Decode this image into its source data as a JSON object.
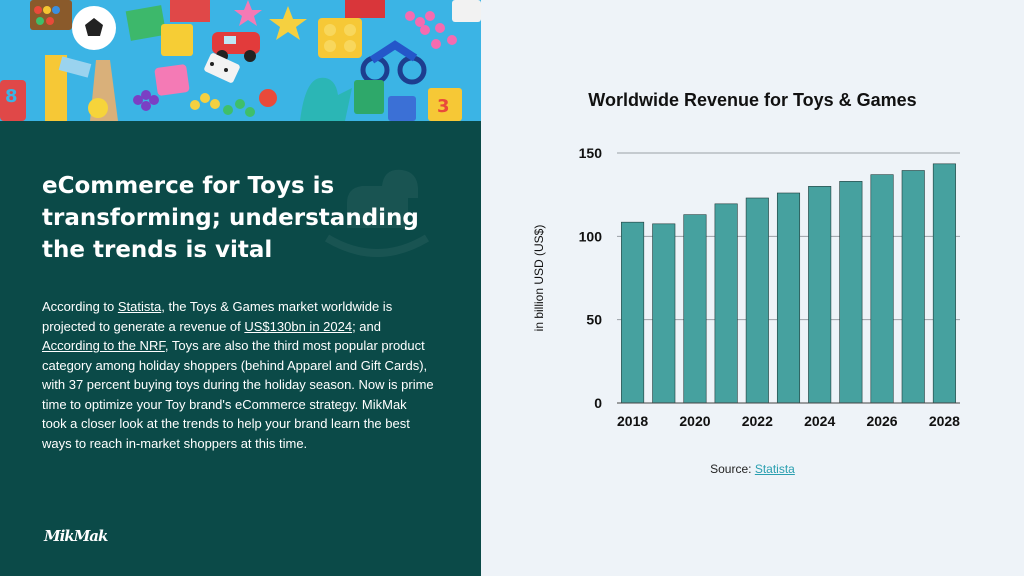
{
  "heading": "eCommerce for Toys is transforming; understanding the trends is vital",
  "body": {
    "t1": "According to ",
    "l1": "Statista",
    "t2": ", the Toys & Games market worldwide is projected to generate a revenue of ",
    "l2": "US$130bn in 2024",
    "t3": "; and ",
    "l3": "According to the NRF",
    "t4": ", Toys are also the third most popular product category among holiday shoppers (behind Apparel and Gift Cards), with 37 percent buying toys during the holiday season. Now is prime time to optimize your Toy brand's eCommerce strategy. MikMak took a closer look at the trends to help your brand learn the best ways to reach in-market shoppers at this time."
  },
  "logo": "MikMak",
  "source": {
    "label": "Source: ",
    "link": "Statista"
  },
  "colors": {
    "panel": "#0b4a48",
    "bar": "#46a19f",
    "accent": "#2a9fb0"
  },
  "chart_data": {
    "type": "bar",
    "title": "Worldwide Revenue for Toys & Games",
    "xlabel": "",
    "ylabel": "in billion USD (US$)",
    "categories": [
      "2018",
      "2019",
      "2020",
      "2021",
      "2022",
      "2023",
      "2024",
      "2025",
      "2026",
      "2027",
      "2028"
    ],
    "values": [
      108.5,
      107.5,
      113,
      119.5,
      123,
      126,
      130,
      133,
      137,
      139.5,
      143.5
    ],
    "x_tick_labels": [
      "2018",
      "2020",
      "2022",
      "2024",
      "2026",
      "2028"
    ],
    "ylim": [
      0,
      150
    ],
    "y_ticks": [
      0,
      50,
      100,
      150
    ],
    "grid": true,
    "legend": "none"
  }
}
